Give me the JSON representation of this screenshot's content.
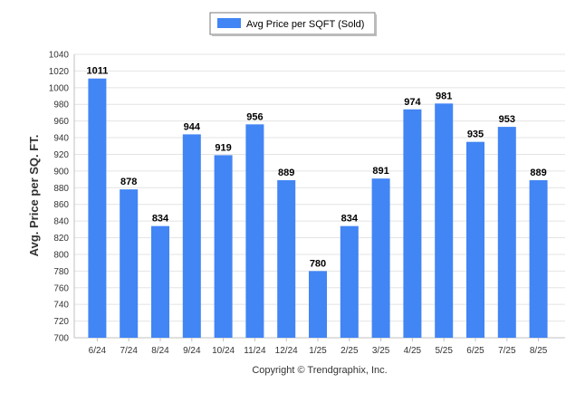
{
  "chart_data": {
    "type": "bar",
    "categories": [
      "6/24",
      "7/24",
      "8/24",
      "9/24",
      "10/24",
      "11/24",
      "12/24",
      "1/25",
      "2/25",
      "3/25",
      "4/25",
      "5/25",
      "6/25",
      "7/25",
      "8/25"
    ],
    "series": [
      {
        "name": "Avg Price per SQFT (Sold)",
        "values": [
          1011,
          878,
          834,
          944,
          919,
          956,
          889,
          780,
          834,
          891,
          974,
          981,
          935,
          953,
          889
        ]
      }
    ],
    "ylabel": "Avg. Price per SQ. FT.",
    "xlabel": "",
    "ylim": [
      700,
      1040
    ],
    "yticks": [
      700,
      720,
      740,
      760,
      780,
      800,
      820,
      840,
      860,
      880,
      900,
      920,
      940,
      960,
      980,
      1000,
      1020,
      1040
    ],
    "grid": true,
    "legend_position": "top-center",
    "bar_color": "#4285f4"
  },
  "footer": {
    "copyright": "Copyright © Trendgraphix, Inc."
  }
}
